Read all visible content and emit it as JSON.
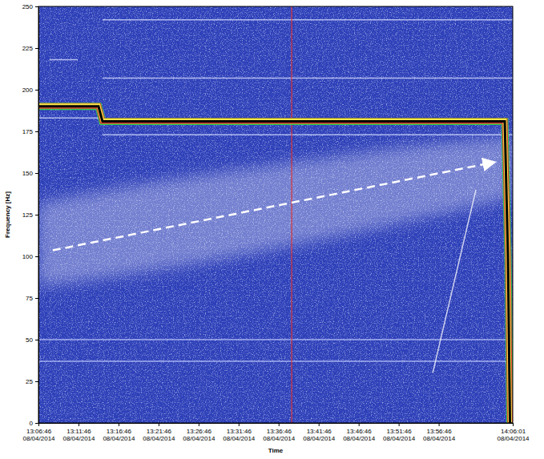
{
  "chart_data": {
    "type": "line",
    "x_label": "Time",
    "y_label": "Frequency [Hz]",
    "xlim": [
      "2014-04-08T13:06:46",
      "2014-04-08T14:06:01"
    ],
    "xticks": [
      {
        "value": "2014-04-08T13:06:46",
        "label": "13:06:46 08/04/2014"
      },
      {
        "value": "2014-04-08T13:11:46",
        "label": "13:11:46 08/04/2014"
      },
      {
        "value": "2014-04-08T13:16:46",
        "label": "13:16:46 08/04/2014"
      },
      {
        "value": "2014-04-08T13:21:46",
        "label": "13:21:46 08/04/2014"
      },
      {
        "value": "2014-04-08T13:26:46",
        "label": "13:26:46 08/04/2014"
      },
      {
        "value": "2014-04-08T13:31:46",
        "label": "13:31:46 08/04/2014"
      },
      {
        "value": "2014-04-08T13:36:46",
        "label": "13:36:46 08/04/2014"
      },
      {
        "value": "2014-04-08T13:41:46",
        "label": "13:41:46 08/04/2014"
      },
      {
        "value": "2014-04-08T13:46:46",
        "label": "13:46:46 08/04/2014"
      },
      {
        "value": "2014-04-08T13:51:46",
        "label": "13:51:46 08/04/2014"
      },
      {
        "value": "2014-04-08T13:56:46",
        "label": "13:56:46 08/04/2014"
      },
      {
        "value": "2014-04-08T14:06:01",
        "label": "14:06:01 08/04/2014"
      }
    ],
    "ylim": [
      0,
      250
    ],
    "yticks": [
      0,
      25,
      50,
      75,
      100,
      125,
      150,
      175,
      200,
      225,
      250
    ],
    "series": [
      {
        "type": "area",
        "color": "#ffffff",
        "x": [
          "2014-04-08T13:06:46",
          "2014-04-08T13:21:46",
          "2014-04-08T13:36:46",
          "2014-04-08T13:51:46",
          "2014-04-08T14:06:01"
        ],
        "values": [
          132,
          145,
          155,
          165,
          172
        ],
        "low": [
          82,
          92,
          105,
          120,
          135
        ]
      },
      {
        "color": "#d8e0ff",
        "x": [
          "2014-04-08T13:06:46",
          "2014-04-08T13:14:46"
        ],
        "values": [
          183,
          183
        ]
      },
      {
        "color": "#d8e0ff",
        "x": [
          "2014-04-08T13:08:10",
          "2014-04-08T13:11:40"
        ],
        "values": [
          218,
          218
        ]
      },
      {
        "color": "#d8e0ff",
        "x": [
          "2014-04-08T13:14:46",
          "2014-04-08T14:06:01"
        ],
        "values": [
          242,
          242
        ]
      },
      {
        "color": "#d8e0ff",
        "x": [
          "2014-04-08T13:14:46",
          "2014-04-08T14:06:01"
        ],
        "values": [
          207,
          207
        ]
      },
      {
        "color": "#d8e0ff",
        "x": [
          "2014-04-08T13:14:46",
          "2014-04-08T14:06:01"
        ],
        "values": [
          173,
          173
        ]
      },
      {
        "color": "#c8d2ff",
        "x": [
          "2014-04-08T13:06:46",
          "2014-04-08T14:06:01"
        ],
        "values": [
          50,
          50
        ]
      },
      {
        "color": "#c8d2ff",
        "x": [
          "2014-04-08T13:06:46",
          "2014-04-08T14:06:01"
        ],
        "values": [
          37,
          37
        ]
      },
      {
        "color": "#e03030",
        "x": [
          "2014-04-08T13:38:24",
          "2014-04-08T13:38:24"
        ],
        "values": [
          0,
          250
        ]
      },
      {
        "color": "#ffffff",
        "x": [
          "2014-04-08T13:56:01",
          "2014-04-08T14:01:25"
        ],
        "values": [
          30,
          140
        ]
      },
      {
        "color": "#000000",
        "line_style": "highlighted",
        "x": [
          "2014-04-08T13:06:46",
          "2014-04-08T13:14:16",
          "2014-04-08T13:14:46",
          "2014-04-08T14:05:01",
          "2014-04-08T14:05:25",
          "2014-04-08T14:05:37",
          "2014-04-08T14:05:40"
        ],
        "values": [
          190,
          190,
          181,
          181,
          100,
          20,
          0
        ]
      }
    ]
  }
}
